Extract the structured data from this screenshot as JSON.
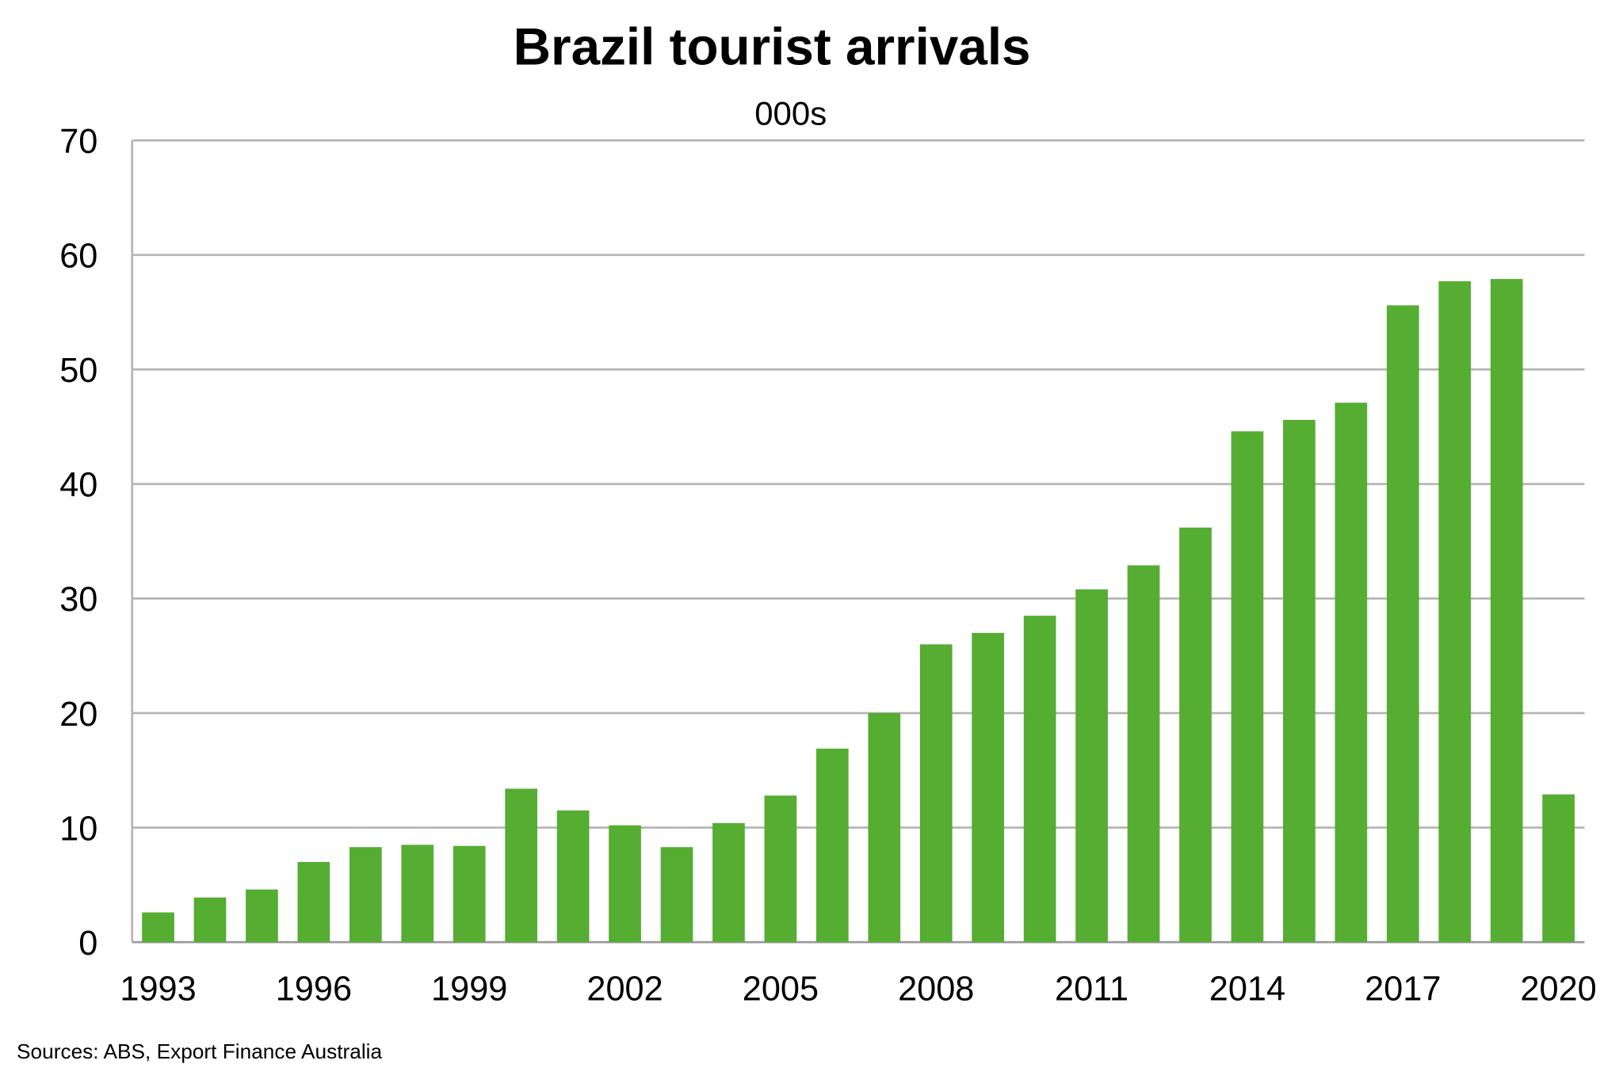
{
  "chart_data": {
    "type": "bar",
    "title": "Brazil tourist arrivals",
    "subtitle": "000s",
    "xlabel": "",
    "ylabel": "",
    "ylim": [
      0,
      70
    ],
    "yticks": [
      0,
      10,
      20,
      30,
      40,
      50,
      60,
      70
    ],
    "xtick_labels": [
      "1993",
      "1996",
      "1999",
      "2002",
      "2005",
      "2008",
      "2011",
      "2014",
      "2017",
      "2020"
    ],
    "grid": true,
    "bar_color": "#55ad32",
    "categories": [
      "1993",
      "1994",
      "1995",
      "1996",
      "1997",
      "1998",
      "1999",
      "2000",
      "2001",
      "2002",
      "2003",
      "2004",
      "2005",
      "2006",
      "2007",
      "2008",
      "2009",
      "2010",
      "2011",
      "2012",
      "2013",
      "2014",
      "2015",
      "2016",
      "2017",
      "2018",
      "2019",
      "2020"
    ],
    "values": [
      2.6,
      3.9,
      4.6,
      7.0,
      8.3,
      8.5,
      8.4,
      13.4,
      11.5,
      10.2,
      8.3,
      10.4,
      12.8,
      16.9,
      20.0,
      26.0,
      27.0,
      28.5,
      30.8,
      32.9,
      36.2,
      44.6,
      45.6,
      47.1,
      55.6,
      57.7,
      57.9,
      12.9
    ],
    "source": "Sources: ABS, Export Finance Australia"
  }
}
